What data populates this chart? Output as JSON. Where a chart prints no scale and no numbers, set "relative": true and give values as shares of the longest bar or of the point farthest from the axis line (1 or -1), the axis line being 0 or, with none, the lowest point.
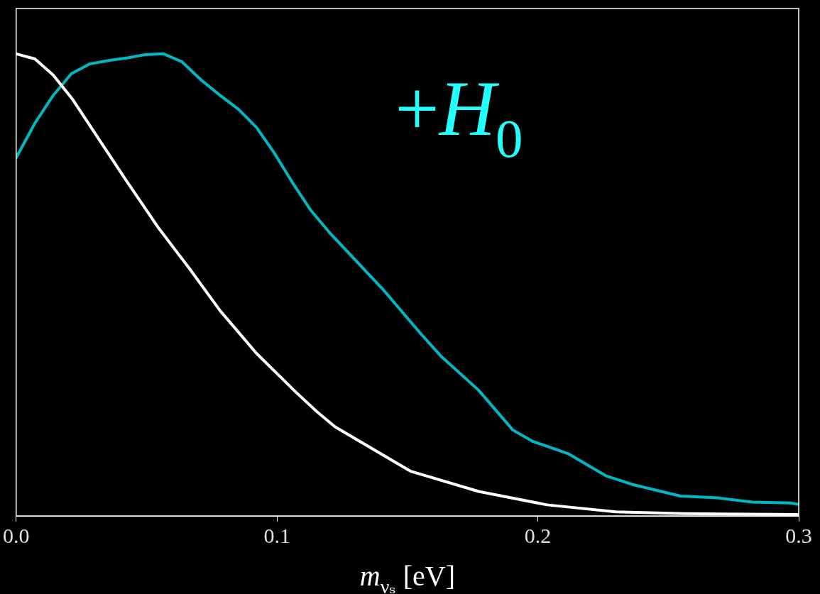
{
  "chart_data": {
    "type": "line",
    "relative": true,
    "xlabel": "m$_{νₛ}$ [eV]",
    "xlim": [
      0,
      0.3
    ],
    "xticks": [
      {
        "value": 0,
        "label": "0.0"
      },
      0.1,
      0.2,
      0.3
    ],
    "grid": false,
    "legend": false,
    "marker": "none",
    "line_style": "solid",
    "series": [
      {
        "color": "#ffffff",
        "x": [
          0,
          0.0072,
          0.0142,
          0.0217,
          0.0301,
          0.0417,
          0.0546,
          0.0662,
          0.0782,
          0.0921,
          0.1074,
          0.1152,
          0.1222,
          0.1511,
          0.1773,
          0.2035,
          0.2299,
          0.2561,
          0.3
        ],
        "values": [
          1.0,
          0.989,
          0.954,
          0.901,
          0.829,
          0.73,
          0.623,
          0.537,
          0.444,
          0.352,
          0.267,
          0.226,
          0.193,
          0.097,
          0.053,
          0.024,
          0.009,
          0.005,
          0.003
        ]
      },
      {
        "name": "+H$_{0}$",
        "color": "#00b8c4",
        "x": [
          0,
          0.0072,
          0.0142,
          0.0212,
          0.0281,
          0.0359,
          0.0423,
          0.0493,
          0.0565,
          0.0635,
          0.071,
          0.0782,
          0.0852,
          0.0921,
          0.0991,
          0.1063,
          0.113,
          0.1208,
          0.1405,
          0.155,
          0.1628,
          0.1773,
          0.1904,
          0.1982,
          0.2115,
          0.226,
          0.2363,
          0.2547,
          0.2691,
          0.2822,
          0.2967,
          0.3
        ],
        "values": [
          0.775,
          0.85,
          0.91,
          0.957,
          0.978,
          0.986,
          0.991,
          0.998,
          1.0,
          0.983,
          0.943,
          0.91,
          0.88,
          0.841,
          0.784,
          0.718,
          0.661,
          0.609,
          0.491,
          0.395,
          0.346,
          0.272,
          0.186,
          0.161,
          0.135,
          0.087,
          0.068,
          0.043,
          0.039,
          0.03,
          0.028,
          0.025
        ]
      }
    ]
  }
}
